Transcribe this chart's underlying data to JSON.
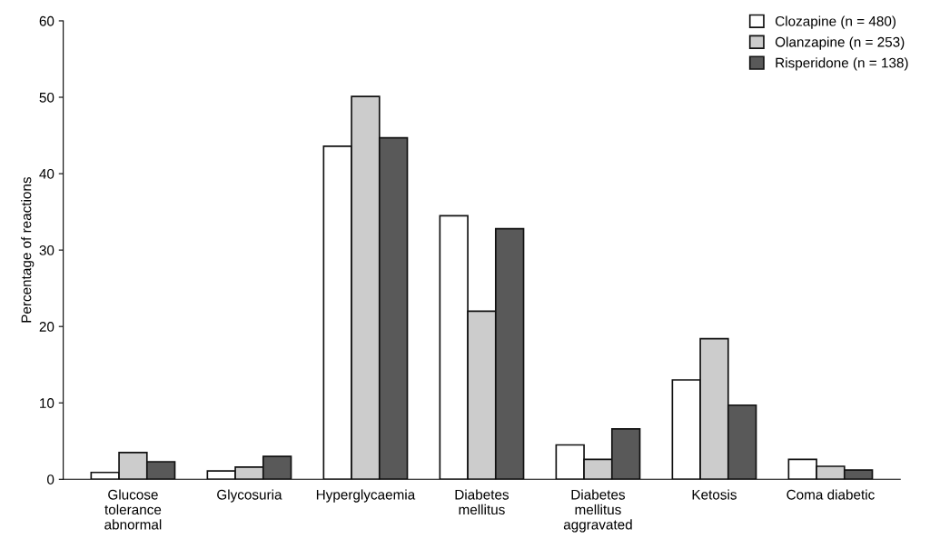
{
  "chart_data": {
    "type": "bar",
    "ylabel": "Percentage of reactions",
    "categories": [
      "Glucose\ntolerance\nabnormal",
      "Glycosuria",
      "Hyperglycaemia",
      "Diabetes\nmellitus",
      "Diabetes\nmellitus\naggravated",
      "Ketosis",
      "Coma diabetic"
    ],
    "series": [
      {
        "name": "Clozapine (n = 480)",
        "color": "#ffffff",
        "values": [
          0.9,
          1.1,
          43.6,
          34.5,
          4.5,
          13.0,
          2.6
        ]
      },
      {
        "name": "Olanzapine (n = 253)",
        "color": "#cccccc",
        "values": [
          3.5,
          1.6,
          50.1,
          22.0,
          2.6,
          18.4,
          1.7
        ]
      },
      {
        "name": "Risperidone (n = 138)",
        "color": "#595959",
        "values": [
          2.3,
          3.0,
          44.7,
          32.8,
          6.6,
          9.7,
          1.2
        ]
      }
    ],
    "ylim": [
      0,
      60
    ],
    "yticks": [
      0,
      10,
      20,
      30,
      40,
      50,
      60
    ],
    "grid": false,
    "legend": "top right"
  }
}
